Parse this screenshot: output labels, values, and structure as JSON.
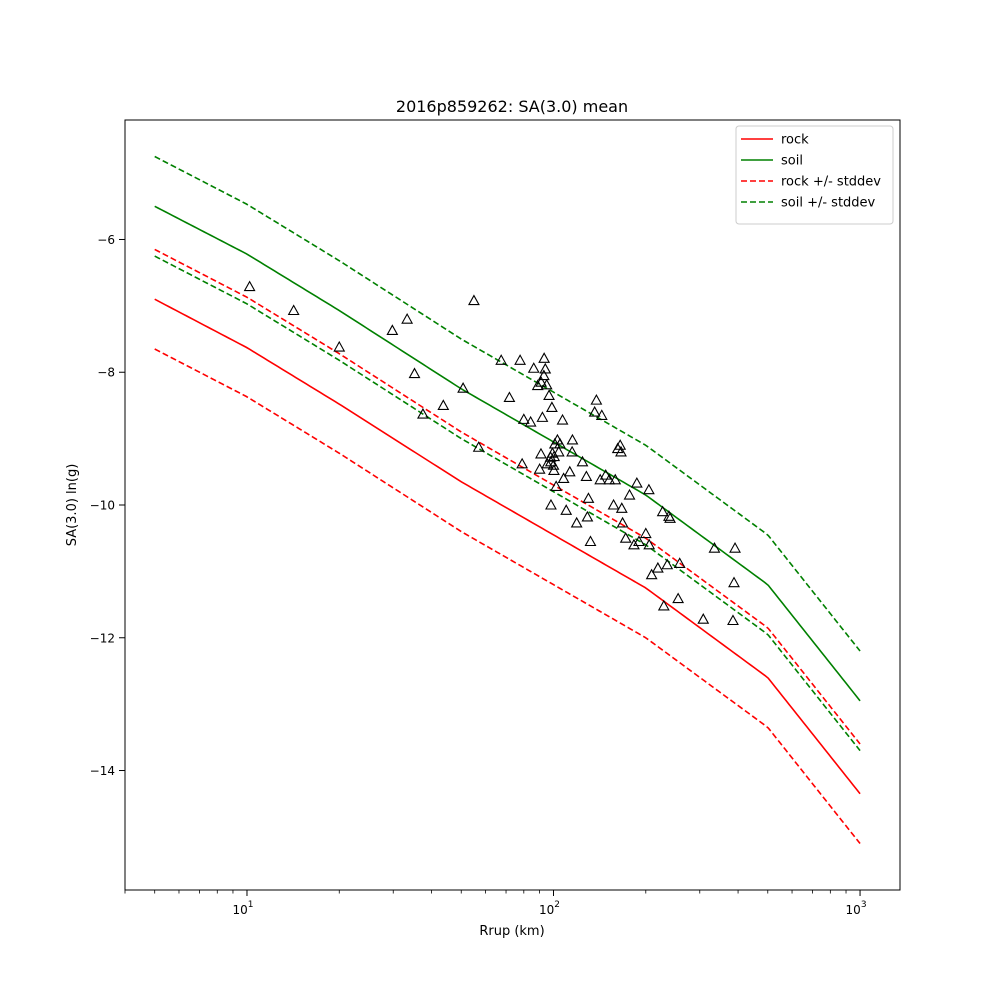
{
  "chart_data": {
    "type": "scatter",
    "title": "2016p859262: SA(3.0) mean",
    "xlabel": "Rrup (km)",
    "ylabel": "SA(3.0) ln(g)",
    "xscale": "log",
    "xlim": [
      4,
      1350
    ],
    "ylim": [
      -15.8,
      -4.2
    ],
    "grid": false,
    "legend_position": "top-right",
    "x_ticks": [
      {
        "value": 10,
        "base": "10",
        "exp": "1"
      },
      {
        "value": 100,
        "base": "10",
        "exp": "2"
      },
      {
        "value": 1000,
        "base": "10",
        "exp": "3"
      }
    ],
    "y_ticks": [
      {
        "value": -14,
        "label": "−14"
      },
      {
        "value": -12,
        "label": "−12"
      },
      {
        "value": -10,
        "label": "−10"
      },
      {
        "value": -8,
        "label": "−8"
      },
      {
        "value": -6,
        "label": "−6"
      }
    ],
    "lines": [
      {
        "name": "rock",
        "color": "#ff0000",
        "style": "solid",
        "legend": true,
        "x": [
          5,
          10,
          20,
          50,
          100,
          200,
          500,
          1000
        ],
        "y": [
          -6.9,
          -7.63,
          -8.48,
          -9.65,
          -10.45,
          -11.25,
          -12.6,
          -14.35
        ]
      },
      {
        "name": "soil",
        "color": "#008000",
        "style": "solid",
        "legend": true,
        "x": [
          5,
          10,
          20,
          50,
          100,
          200,
          500,
          1000
        ],
        "y": [
          -5.5,
          -6.22,
          -7.07,
          -8.25,
          -9.05,
          -9.85,
          -11.2,
          -12.95
        ]
      },
      {
        "name": "rock +/- stddev",
        "color": "#ff0000",
        "style": "dashed",
        "legend": true,
        "x": [
          5,
          10,
          20,
          50,
          100,
          200,
          500,
          1000
        ],
        "y": [
          -6.15,
          -6.87,
          -7.72,
          -8.9,
          -9.7,
          -10.5,
          -11.85,
          -13.6
        ]
      },
      {
        "name": "soil +/- stddev",
        "color": "#008000",
        "style": "dashed",
        "legend": true,
        "x": [
          5,
          10,
          20,
          50,
          100,
          200,
          500,
          1000
        ],
        "y": [
          -4.75,
          -5.47,
          -6.32,
          -7.5,
          -8.3,
          -9.1,
          -10.45,
          -12.2
        ]
      },
      {
        "name": "rock +/- stddev",
        "color": "#ff0000",
        "style": "dashed",
        "legend": false,
        "x": [
          5,
          10,
          20,
          50,
          100,
          200,
          500,
          1000
        ],
        "y": [
          -7.65,
          -8.37,
          -9.22,
          -10.4,
          -11.2,
          -12.0,
          -13.35,
          -15.1
        ]
      },
      {
        "name": "soil +/- stddev",
        "color": "#008000",
        "style": "dashed",
        "legend": false,
        "x": [
          5,
          10,
          20,
          50,
          100,
          200,
          500,
          1000
        ],
        "y": [
          -6.25,
          -6.97,
          -7.82,
          -9.0,
          -9.8,
          -10.6,
          -11.95,
          -13.7
        ]
      }
    ],
    "points": {
      "marker": "triangle-open",
      "color": "#000000",
      "x": [
        10.2,
        14.2,
        20,
        29.8,
        33.3,
        35.2,
        37.5,
        43.7,
        50.7,
        55,
        57,
        67.5,
        71.8,
        77.8,
        79,
        80,
        84.2,
        86.2,
        88.8,
        90.1,
        91,
        91.1,
        92,
        93,
        93.2,
        94,
        95,
        95.4,
        96.7,
        97.8,
        98,
        98.1,
        98.8,
        99.2,
        100,
        100.3,
        100.5,
        101,
        102,
        103,
        104,
        105,
        107,
        107.9,
        110,
        113,
        115,
        115.3,
        119,
        124.3,
        128,
        129,
        130,
        132,
        136.2,
        138,
        142,
        143.7,
        148,
        152,
        157,
        159,
        162,
        165,
        166,
        167,
        168,
        172,
        177,
        183,
        187,
        190,
        200,
        204.7,
        205.2,
        209,
        219,
        227,
        229,
        235,
        238,
        240,
        255,
        258,
        308,
        335,
        385,
        388,
        391
      ],
      "y": [
        -6.71,
        -7.07,
        -7.62,
        -7.37,
        -7.2,
        -8.02,
        -8.63,
        -8.5,
        -8.24,
        -6.92,
        -9.13,
        -7.82,
        -8.38,
        -7.82,
        -9.38,
        -8.71,
        -8.75,
        -7.94,
        -8.2,
        -9.46,
        -9.23,
        -8.15,
        -8.68,
        -8.05,
        -7.79,
        -7.95,
        -8.19,
        -9.38,
        -8.35,
        -9.28,
        -9.35,
        -10.0,
        -8.53,
        -9.22,
        -9.4,
        -9.48,
        -9.27,
        -9.08,
        -9.72,
        -9.02,
        -9.2,
        -9.08,
        -8.72,
        -9.6,
        -10.08,
        -9.5,
        -9.2,
        -9.02,
        -10.27,
        -9.35,
        -9.57,
        -10.18,
        -9.9,
        -10.55,
        -8.6,
        -8.42,
        -9.62,
        -8.65,
        -9.55,
        -9.62,
        -10.0,
        -9.62,
        -9.15,
        -9.1,
        -9.2,
        -10.05,
        -10.27,
        -10.5,
        -9.85,
        -10.6,
        -9.67,
        -10.55,
        -10.43,
        -9.77,
        -10.6,
        -11.05,
        -10.95,
        -10.1,
        -11.52,
        -10.9,
        -10.17,
        -10.2,
        -11.41,
        -10.88,
        -11.72,
        -10.65,
        -11.74,
        -11.17,
        -10.65
      ]
    }
  }
}
